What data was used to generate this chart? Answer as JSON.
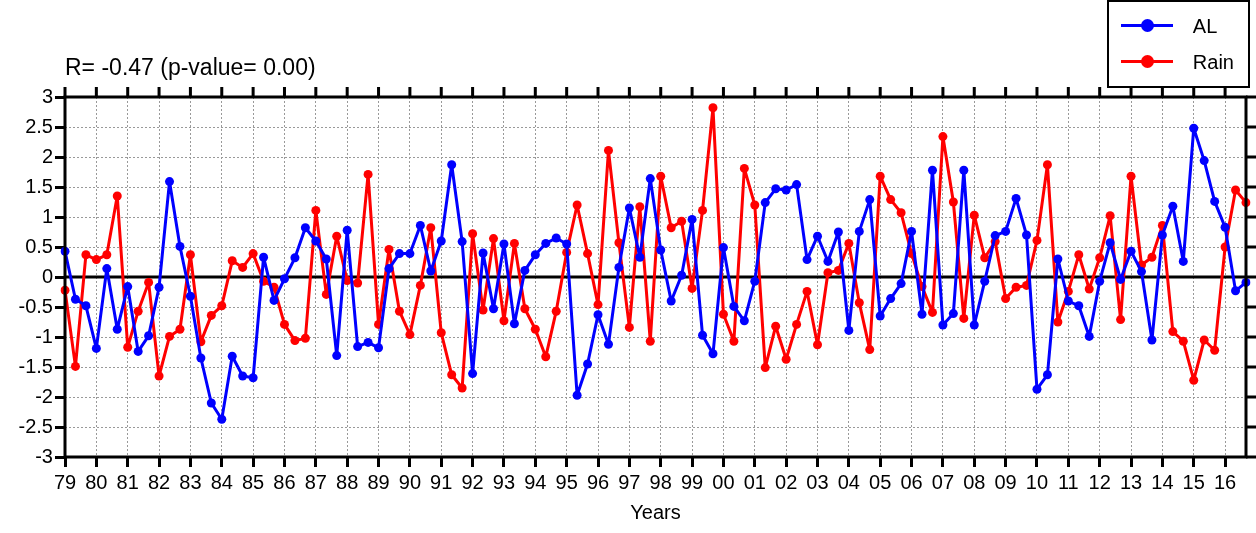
{
  "chart_data": {
    "type": "line",
    "title": "R= -0.47 (p-value= 0.00)",
    "xlabel": "Years",
    "categories": [
      "79",
      null,
      null,
      "80",
      null,
      null,
      "81",
      null,
      null,
      "82",
      null,
      null,
      "83",
      null,
      null,
      "84",
      null,
      null,
      "85",
      null,
      null,
      "86",
      null,
      null,
      "87",
      null,
      null,
      "88",
      null,
      null,
      "89",
      null,
      null,
      "90",
      null,
      null,
      "91",
      null,
      null,
      "92",
      null,
      null,
      "93",
      null,
      null,
      "94",
      null,
      null,
      "95",
      null,
      null,
      "96",
      null,
      null,
      "97",
      null,
      null,
      "98",
      null,
      null,
      "99",
      null,
      null,
      "00",
      null,
      null,
      "01",
      null,
      null,
      "02",
      null,
      null,
      "03",
      null,
      null,
      "04",
      null,
      null,
      "05",
      null,
      null,
      "06",
      null,
      null,
      "07",
      null,
      null,
      "08",
      null,
      null,
      "09",
      null,
      null,
      "10",
      null,
      null,
      "11",
      null,
      null,
      "12",
      null,
      null,
      "13",
      null,
      null,
      "14",
      null,
      null,
      "15",
      null,
      null,
      "16",
      null,
      null
    ],
    "series": [
      {
        "name": "AL",
        "color": "#0000ff",
        "values": [
          0.43,
          -0.37,
          -0.48,
          -1.19,
          0.14,
          -0.87,
          -0.16,
          -1.24,
          -0.98,
          -0.17,
          1.59,
          0.51,
          -0.32,
          -1.35,
          -2.1,
          -2.37,
          -1.32,
          -1.65,
          -1.68,
          0.33,
          -0.39,
          -0.03,
          0.32,
          0.82,
          0.6,
          0.3,
          -1.31,
          0.78,
          -1.16,
          -1.09,
          -1.18,
          0.14,
          0.39,
          0.39,
          0.86,
          0.1,
          0.6,
          1.87,
          0.59,
          -1.61,
          0.4,
          -0.53,
          0.55,
          -0.78,
          0.11,
          0.37,
          0.56,
          0.65,
          0.55,
          -1.97,
          -1.45,
          -0.63,
          -1.12,
          0.16,
          1.15,
          0.33,
          1.64,
          0.45,
          -0.4,
          0.03,
          0.96,
          -0.97,
          -1.28,
          0.49,
          -0.49,
          -0.73,
          -0.07,
          1.24,
          1.47,
          1.45,
          1.54,
          0.29,
          0.68,
          0.26,
          0.75,
          -0.89,
          0.76,
          1.29,
          -0.65,
          -0.36,
          -0.11,
          0.76,
          -0.62,
          1.78,
          -0.8,
          -0.61,
          1.78,
          -0.8,
          -0.07,
          0.69,
          0.76,
          1.31,
          0.7,
          -1.87,
          -1.63,
          0.3,
          -0.4,
          -0.48,
          -0.99,
          -0.07,
          0.57,
          -0.04,
          0.43,
          0.09,
          -1.05,
          0.7,
          1.18,
          0.26,
          2.48,
          1.94,
          1.26,
          0.83,
          -0.23,
          -0.09
        ]
      },
      {
        "name": "Rain",
        "color": "#ff0000",
        "values": [
          -0.22,
          -1.49,
          0.37,
          0.29,
          0.37,
          1.35,
          -1.17,
          -0.57,
          -0.09,
          -1.65,
          -0.99,
          -0.87,
          0.37,
          -1.08,
          -0.64,
          -0.48,
          0.27,
          0.16,
          0.39,
          -0.07,
          -0.17,
          -0.79,
          -1.06,
          -1.02,
          1.11,
          -0.29,
          0.68,
          -0.06,
          -0.1,
          1.71,
          -0.79,
          0.46,
          -0.57,
          -0.96,
          -0.14,
          0.82,
          -0.93,
          -1.63,
          -1.85,
          0.72,
          -0.55,
          0.64,
          -0.73,
          0.56,
          -0.53,
          -0.87,
          -1.33,
          -0.57,
          0.41,
          1.2,
          0.39,
          -0.46,
          2.11,
          0.57,
          -0.84,
          1.17,
          -1.07,
          1.68,
          0.82,
          0.93,
          -0.19,
          1.11,
          2.82,
          -0.62,
          -1.07,
          1.81,
          1.2,
          -1.51,
          -0.82,
          -1.37,
          -0.79,
          -0.24,
          -1.13,
          0.07,
          0.11,
          0.56,
          -0.43,
          -1.21,
          1.68,
          1.29,
          1.07,
          0.39,
          -0.16,
          -0.59,
          2.34,
          1.25,
          -0.69,
          1.03,
          0.32,
          0.59,
          -0.36,
          -0.17,
          -0.14,
          0.61,
          1.87,
          -0.75,
          -0.24,
          0.37,
          -0.2,
          0.32,
          1.02,
          -0.71,
          1.68,
          0.2,
          0.33,
          0.86,
          -0.91,
          -1.07,
          -1.72,
          -1.05,
          -1.22,
          0.5,
          1.45,
          1.24
        ]
      }
    ],
    "ylim": [
      -3,
      3
    ],
    "yticks": [
      -3,
      -2.5,
      -2,
      -1.5,
      -1,
      -0.5,
      0,
      0.5,
      1,
      1.5,
      2,
      2.5,
      3
    ],
    "ref_lines": [
      {
        "axis": "y",
        "value": 0,
        "color": "#000000"
      }
    ],
    "grid": true,
    "legend": "top right",
    "marker": "circle",
    "line_style": "solid"
  }
}
